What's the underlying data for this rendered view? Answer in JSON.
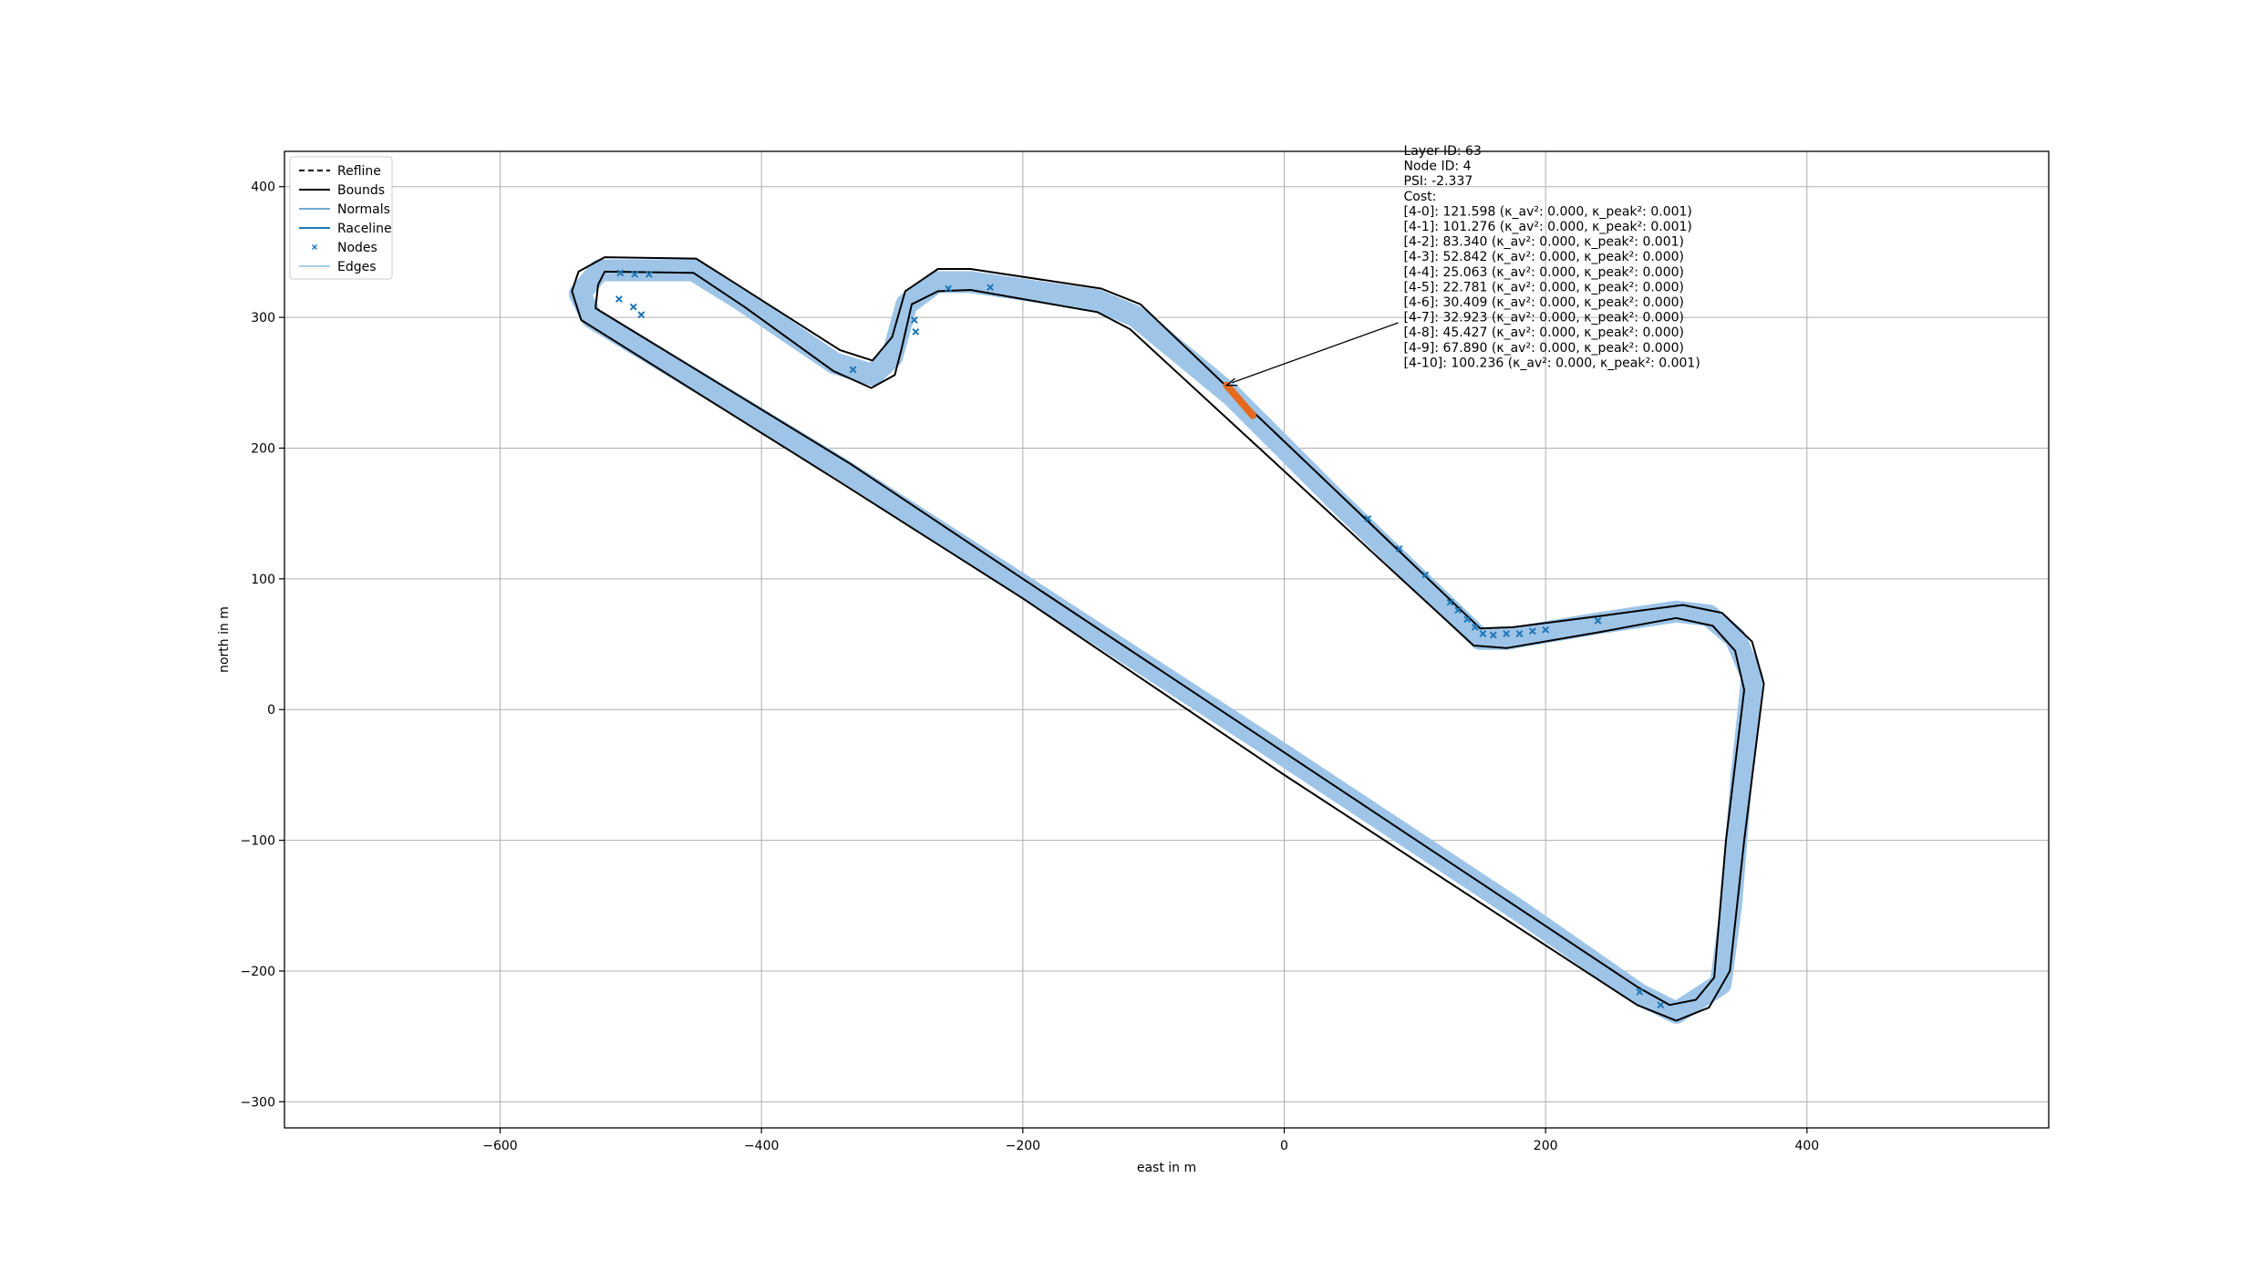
{
  "chart_data": {
    "type": "line",
    "title": "",
    "xlabel": "east in m",
    "ylabel": "north in m",
    "xlim": [
      -765,
      585
    ],
    "ylim": [
      -320,
      427
    ],
    "xticks": [
      -600,
      -400,
      -200,
      0,
      200,
      400
    ],
    "yticks": [
      -300,
      -200,
      -100,
      0,
      100,
      200,
      300,
      400
    ],
    "xtick_labels": [
      "−600",
      "−400",
      "−200",
      "0",
      "200",
      "400"
    ],
    "ytick_labels": [
      "−300",
      "−200",
      "−100",
      "0",
      "100",
      "200",
      "300",
      "400"
    ],
    "grid": true,
    "legend_position": "upper-left",
    "legend": [
      {
        "label": "Refline",
        "style": "dashed",
        "color": "#000000"
      },
      {
        "label": "Bounds",
        "style": "solid",
        "color": "#000000"
      },
      {
        "label": "Normals",
        "style": "solid",
        "color": "#1f77b4"
      },
      {
        "label": "Raceline",
        "style": "solid",
        "color": "#1f77b4"
      },
      {
        "label": "Nodes",
        "style": "marker-x",
        "color": "#1f77b4"
      },
      {
        "label": "Edges",
        "style": "solid",
        "color": "#a6cee3"
      }
    ],
    "colors": {
      "bounds": "#000000",
      "edges": "#9ec5e8",
      "raceline": "#1f77b4",
      "normals": "#1f77b4",
      "highlight": "#e66a1e",
      "grid": "#b0b0b0"
    },
    "series": [
      {
        "name": "Raceline",
        "points": [
          [
            -524,
            336
          ],
          [
            -452,
            336
          ],
          [
            -418,
            315
          ],
          [
            -344,
            265
          ],
          [
            -315,
            256
          ],
          [
            -300,
            270
          ],
          [
            -289,
            310
          ],
          [
            -266,
            327
          ],
          [
            -240,
            327
          ],
          [
            -143,
            313
          ],
          [
            -114,
            301
          ],
          [
            -40,
            240
          ],
          [
            40,
            160
          ],
          [
            150,
            54
          ],
          [
            170,
            54
          ],
          [
            240,
            66
          ],
          [
            300,
            75
          ],
          [
            325,
            72
          ],
          [
            345,
            55
          ],
          [
            358,
            25
          ],
          [
            350,
            -50
          ],
          [
            342,
            -150
          ],
          [
            334,
            -210
          ],
          [
            300,
            -232
          ],
          [
            272,
            -218
          ],
          [
            180,
            -154
          ],
          [
            0,
            -35
          ],
          [
            -200,
            95
          ],
          [
            -340,
            185
          ],
          [
            -530,
            300
          ],
          [
            -539,
            318
          ]
        ]
      },
      {
        "name": "Bounds",
        "outer": [
          [
            -540,
            335
          ],
          [
            -520,
            346
          ],
          [
            -450,
            345
          ],
          [
            -420,
            326
          ],
          [
            -340,
            275
          ],
          [
            -315,
            267
          ],
          [
            -300,
            285
          ],
          [
            -290,
            320
          ],
          [
            -265,
            337
          ],
          [
            -240,
            337
          ],
          [
            -140,
            322
          ],
          [
            -110,
            310
          ],
          [
            150,
            62
          ],
          [
            175,
            63
          ],
          [
            245,
            72
          ],
          [
            305,
            80
          ],
          [
            335,
            74
          ],
          [
            358,
            52
          ],
          [
            367,
            20
          ],
          [
            352,
            -100
          ],
          [
            341,
            -200
          ],
          [
            325,
            -228
          ],
          [
            300,
            -238
          ],
          [
            270,
            -226
          ],
          [
            0,
            -50
          ],
          [
            -200,
            85
          ],
          [
            -340,
            174
          ],
          [
            -538,
            298
          ],
          [
            -545,
            320
          ]
        ],
        "inner": [
          [
            -525,
            325
          ],
          [
            -520,
            335
          ],
          [
            -452,
            334
          ],
          [
            -413,
            308
          ],
          [
            -345,
            259
          ],
          [
            -316,
            246
          ],
          [
            -298,
            256
          ],
          [
            -293,
            275
          ],
          [
            -285,
            310
          ],
          [
            -265,
            320
          ],
          [
            -240,
            321
          ],
          [
            -143,
            304
          ],
          [
            -118,
            291
          ],
          [
            145,
            49
          ],
          [
            170,
            47
          ],
          [
            240,
            59
          ],
          [
            300,
            70
          ],
          [
            328,
            64
          ],
          [
            345,
            45
          ],
          [
            352,
            15
          ],
          [
            338,
            -100
          ],
          [
            329,
            -205
          ],
          [
            315,
            -222
          ],
          [
            295,
            -226
          ],
          [
            270,
            -212
          ],
          [
            -200,
            100
          ],
          [
            -332,
            188
          ],
          [
            -527,
            307
          ]
        ]
      },
      {
        "name": "Highlighted edge",
        "points": [
          [
            -44,
            248
          ],
          [
            -24,
            225
          ]
        ]
      }
    ],
    "nodes": [
      [
        -508,
        334
      ],
      [
        -497,
        333
      ],
      [
        -486,
        333
      ],
      [
        -509,
        314
      ],
      [
        -498,
        308
      ],
      [
        -492,
        302
      ],
      [
        -330,
        260
      ],
      [
        -283,
        298
      ],
      [
        -282,
        289
      ],
      [
        -257,
        322
      ],
      [
        -225,
        323
      ],
      [
        64,
        146
      ],
      [
        88,
        123
      ],
      [
        108,
        103
      ],
      [
        127,
        82
      ],
      [
        133,
        76
      ],
      [
        140,
        69
      ],
      [
        146,
        63
      ],
      [
        152,
        58
      ],
      [
        160,
        57
      ],
      [
        170,
        58
      ],
      [
        180,
        58
      ],
      [
        190,
        60
      ],
      [
        200,
        61
      ],
      [
        240,
        68
      ],
      [
        272,
        -216
      ],
      [
        288,
        -226
      ]
    ],
    "annotation": {
      "lines": [
        "Layer ID: 63",
        "Node ID: 4",
        "PSI: -2.337",
        "Cost:",
        "[4-0]: 121.598 (κ_av²: 0.000, κ_peak²: 0.001)",
        "[4-1]: 101.276 (κ_av²: 0.000, κ_peak²: 0.001)",
        "[4-2]: 83.340 (κ_av²: 0.000, κ_peak²: 0.001)",
        "[4-3]: 52.842 (κ_av²: 0.000, κ_peak²: 0.000)",
        "[4-4]: 25.063 (κ_av²: 0.000, κ_peak²: 0.000)",
        "[4-5]: 22.781 (κ_av²: 0.000, κ_peak²: 0.000)",
        "[4-6]: 30.409 (κ_av²: 0.000, κ_peak²: 0.000)",
        "[4-7]: 32.923 (κ_av²: 0.000, κ_peak²: 0.000)",
        "[4-8]: 45.427 (κ_av²: 0.000, κ_peak²: 0.000)",
        "[4-9]: 67.890 (κ_av²: 0.000, κ_peak²: 0.000)",
        "[4-10]: 100.236 (κ_av²: 0.000, κ_peak²: 0.001)"
      ],
      "arrow_target": [
        -44,
        248
      ],
      "anchor": [
        90,
        409
      ]
    }
  }
}
